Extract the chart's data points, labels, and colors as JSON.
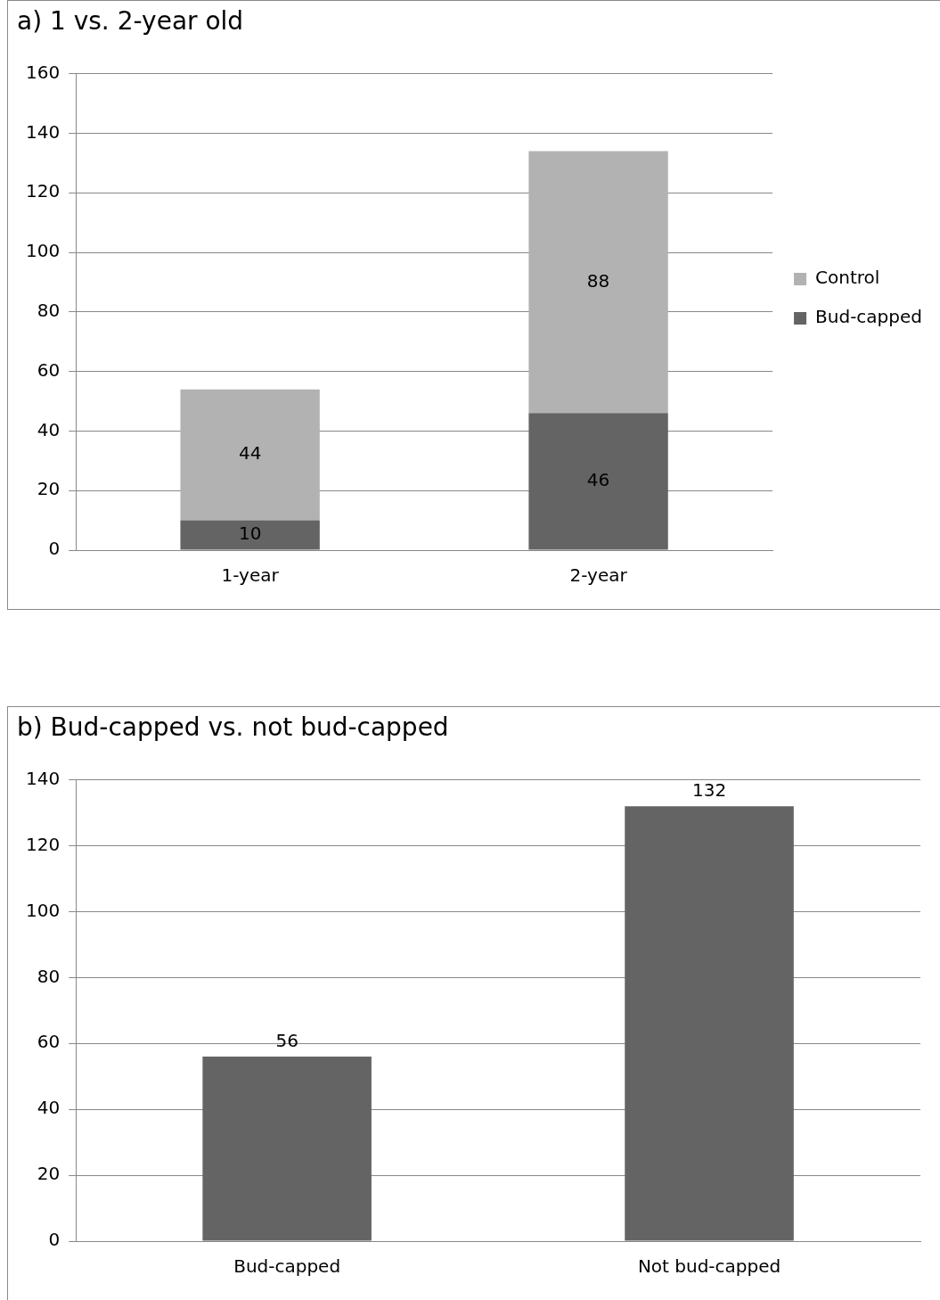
{
  "chart_data": [
    {
      "type": "bar",
      "title": "a) 1 vs. 2-year old",
      "categories": [
        "1-year",
        "2-year"
      ],
      "stacked": true,
      "series": [
        {
          "name": "Bud-capped",
          "color": "#646464",
          "values": [
            10,
            46
          ]
        },
        {
          "name": "Control",
          "color": "#b2b2b2",
          "values": [
            44,
            88
          ]
        }
      ],
      "ylim": [
        0,
        160
      ],
      "yticks": [
        0,
        20,
        40,
        60,
        80,
        100,
        120,
        140,
        160
      ],
      "grid": "y",
      "legend": "right",
      "data_labels": true
    },
    {
      "type": "bar",
      "title": "b) Bud-capped vs. not bud-capped",
      "categories": [
        "Bud-capped",
        "Not bud-capped"
      ],
      "values": [
        56,
        132
      ],
      "color": "#646464",
      "ylim": [
        0,
        140
      ],
      "yticks": [
        0,
        20,
        40,
        60,
        80,
        100,
        120,
        140
      ],
      "grid": "y",
      "data_labels": true
    }
  ]
}
